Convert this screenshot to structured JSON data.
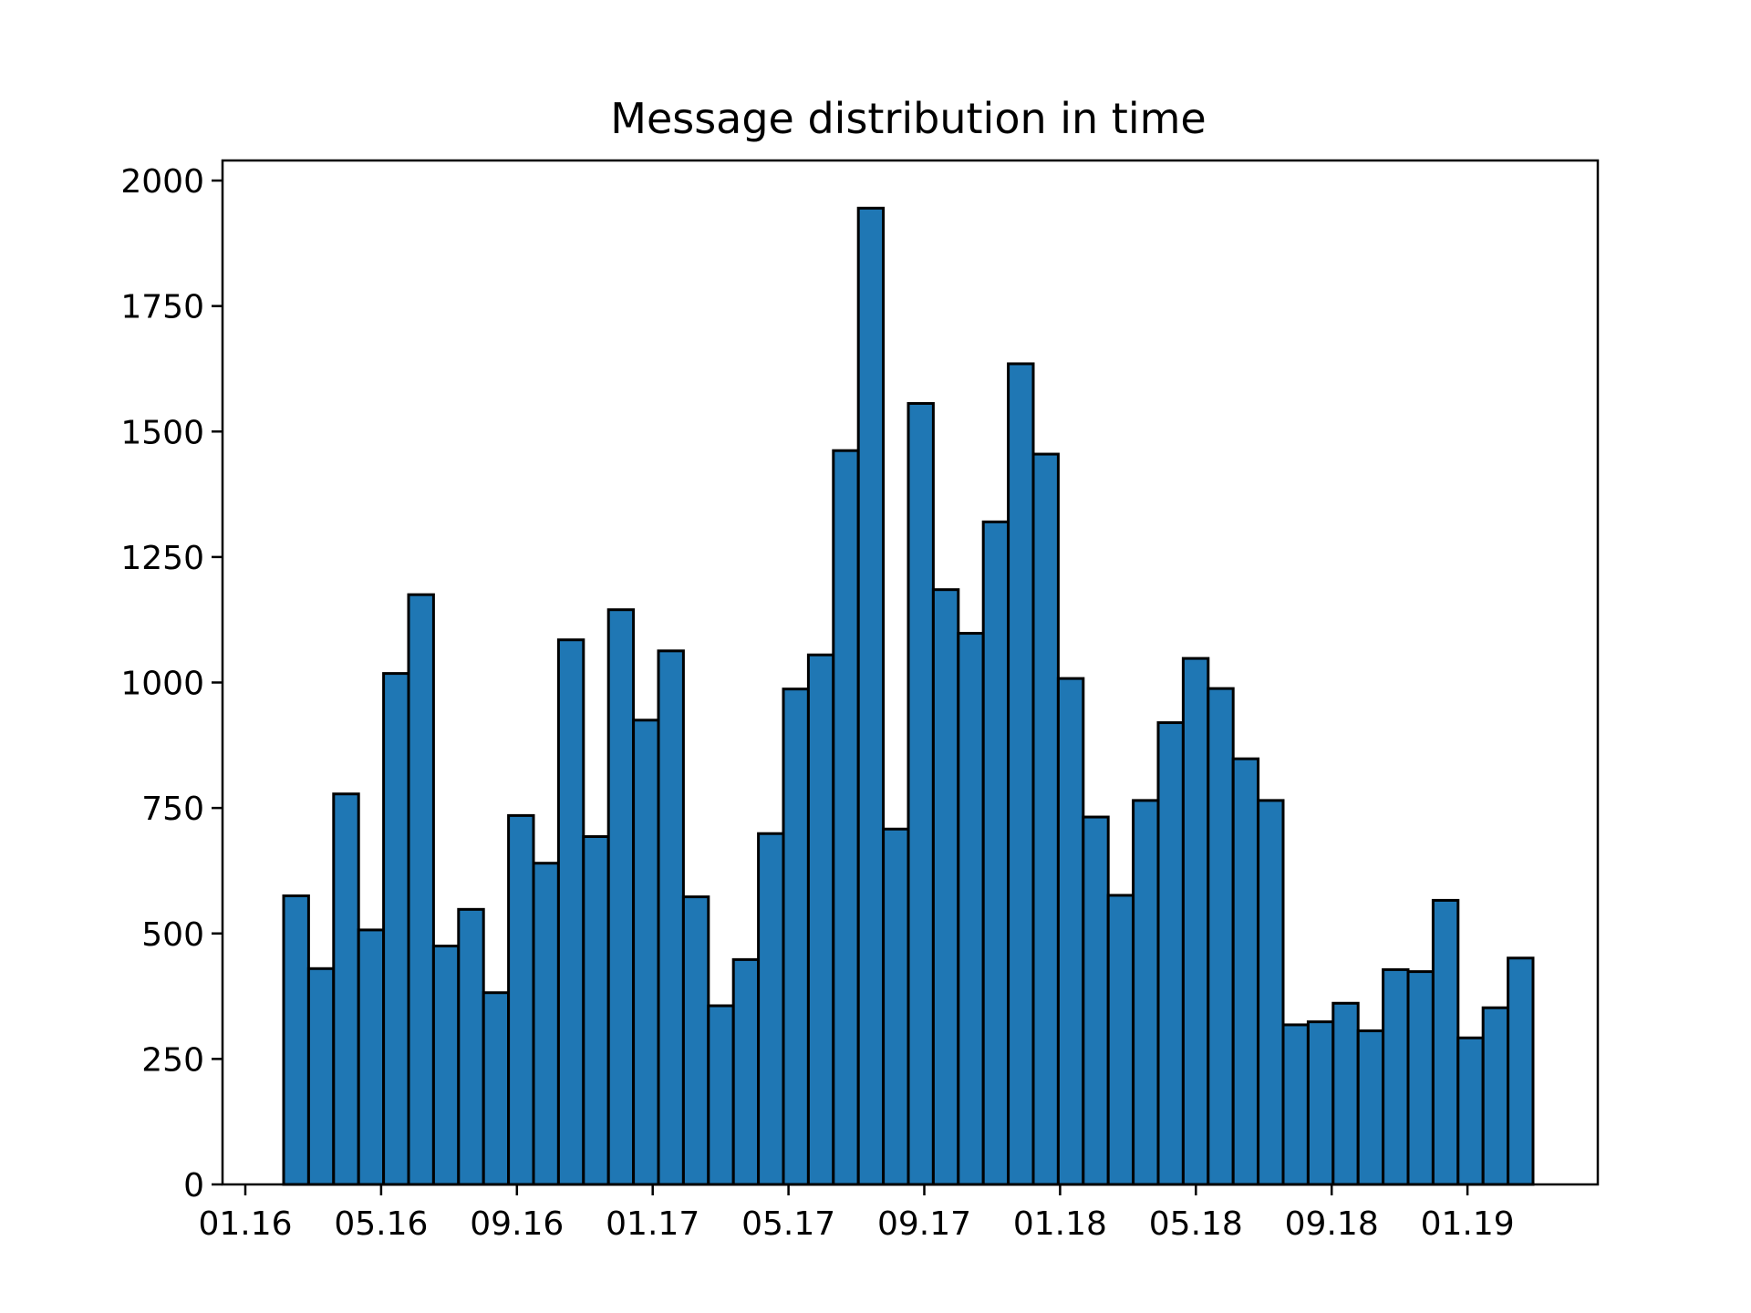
{
  "chart_data": {
    "type": "bar",
    "title": "Message distribution in time",
    "xlabel": "",
    "ylabel": "",
    "ylim": [
      0,
      2040
    ],
    "yticks": [
      0,
      250,
      500,
      750,
      1000,
      1250,
      1500,
      1750,
      2000
    ],
    "xticks": [
      "01.16",
      "05.16",
      "09.16",
      "01.17",
      "05.17",
      "09.17",
      "01.18",
      "05.18",
      "09.18",
      "01.19"
    ],
    "bar_color": "#1f77b4",
    "edge_color": "#000000",
    "grid": false,
    "values": [
      575,
      430,
      778,
      507,
      1018,
      1175,
      475,
      548,
      382,
      735,
      640,
      1085,
      693,
      1145,
      925,
      1063,
      573,
      356,
      448,
      699,
      987,
      1055,
      1462,
      1945,
      708,
      1556,
      1185,
      1098,
      1320,
      1635,
      1455,
      1008,
      732,
      576,
      765,
      920,
      1048,
      988,
      848,
      765,
      318,
      324,
      361,
      306,
      428,
      424,
      566,
      292,
      352,
      451
    ]
  }
}
